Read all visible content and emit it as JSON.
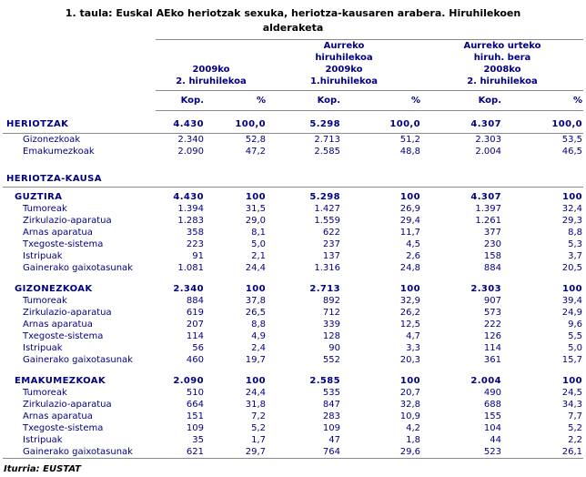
{
  "title": "1. taula: Euskal AEko heriotzak sexuka, heriotza-kausaren arabera. Hiruhilekoen\nalderaketa",
  "colors": {
    "text_navy": "#000080",
    "rule_gray": "#8a8a8a",
    "title_black": "#000000",
    "background": "#ffffff"
  },
  "table": {
    "column_groups": [
      {
        "label": "2009ko\n2. hiruhilekoa"
      },
      {
        "label": "Aurreko\nhiruhilekoa\n2009ko\n1.hiruhilekoa"
      },
      {
        "label": "Aurreko urteko\nhiruh. bera\n2008ko\n2. hiruhilekoa"
      }
    ],
    "subheaders": [
      "Kop.",
      "%",
      "Kop.",
      "%",
      "Kop.",
      "%"
    ],
    "rows": [
      {
        "style": "total",
        "label": "HERIOTZAK",
        "values": [
          "4.430",
          "100,0",
          "5.298",
          "100,0",
          "4.307",
          "100,0"
        ]
      },
      {
        "style": "data",
        "label": "Gizonezkoak",
        "values": [
          "2.340",
          "52,8",
          "2.713",
          "51,2",
          "2.303",
          "53,5"
        ]
      },
      {
        "style": "data",
        "label": "Emakumezkoak",
        "values": [
          "2.090",
          "47,2",
          "2.585",
          "48,8",
          "2.004",
          "46,5"
        ]
      },
      {
        "style": "spacer-lg"
      },
      {
        "style": "section",
        "label": "HERIOTZA-KAUSA",
        "values": [
          "",
          "",
          "",
          "",
          "",
          ""
        ]
      },
      {
        "style": "group",
        "label": "GUZTIRA",
        "values": [
          "4.430",
          "100",
          "5.298",
          "100",
          "4.307",
          "100"
        ]
      },
      {
        "style": "data",
        "label": "Tumoreak",
        "values": [
          "1.394",
          "31,5",
          "1.427",
          "26,9",
          "1.397",
          "32,4"
        ]
      },
      {
        "style": "data",
        "label": "Zirkulazio-aparatua",
        "values": [
          "1.283",
          "29,0",
          "1.559",
          "29,4",
          "1.261",
          "29,3"
        ]
      },
      {
        "style": "data",
        "label": "Arnas aparatua",
        "values": [
          "358",
          "8,1",
          "622",
          "11,7",
          "377",
          "8,8"
        ]
      },
      {
        "style": "data",
        "label": "Txegoste-sistema",
        "values": [
          "223",
          "5,0",
          "237",
          "4,5",
          "230",
          "5,3"
        ]
      },
      {
        "style": "data",
        "label": "Istripuak",
        "values": [
          "91",
          "2,1",
          "137",
          "2,6",
          "158",
          "3,7"
        ]
      },
      {
        "style": "data",
        "label": "Gainerako gaixotasunak",
        "values": [
          "1.081",
          "24,4",
          "1.316",
          "24,8",
          "884",
          "20,5"
        ]
      },
      {
        "style": "spacer-sm"
      },
      {
        "style": "group",
        "label": "GIZONEZKOAK",
        "values": [
          "2.340",
          "100",
          "2.713",
          "100",
          "2.303",
          "100"
        ]
      },
      {
        "style": "data",
        "label": "Tumoreak",
        "values": [
          "884",
          "37,8",
          "892",
          "32,9",
          "907",
          "39,4"
        ]
      },
      {
        "style": "data",
        "label": "Zirkulazio-aparatua",
        "values": [
          "619",
          "26,5",
          "712",
          "26,2",
          "573",
          "24,9"
        ]
      },
      {
        "style": "data",
        "label": "Arnas aparatua",
        "values": [
          "207",
          "8,8",
          "339",
          "12,5",
          "222",
          "9,6"
        ]
      },
      {
        "style": "data",
        "label": "Txegoste-sistema",
        "values": [
          "114",
          "4,9",
          "128",
          "4,7",
          "126",
          "5,5"
        ]
      },
      {
        "style": "data",
        "label": "Istripuak",
        "values": [
          "56",
          "2,4",
          "90",
          "3,3",
          "114",
          "5,0"
        ]
      },
      {
        "style": "data",
        "label": "Gainerako gaixotasunak",
        "values": [
          "460",
          "19,7",
          "552",
          "20,3",
          "361",
          "15,7"
        ]
      },
      {
        "style": "spacer-sm"
      },
      {
        "style": "group",
        "label": "EMAKUMEZKOAK",
        "values": [
          "2.090",
          "100",
          "2.585",
          "100",
          "2.004",
          "100"
        ]
      },
      {
        "style": "data",
        "label": "Tumoreak",
        "values": [
          "510",
          "24,4",
          "535",
          "20,7",
          "490",
          "24,5"
        ]
      },
      {
        "style": "data",
        "label": "Zirkulazio-aparatua",
        "values": [
          "664",
          "31,8",
          "847",
          "32,8",
          "688",
          "34,3"
        ]
      },
      {
        "style": "data",
        "label": "Arnas aparatua",
        "values": [
          "151",
          "7,2",
          "283",
          "10,9",
          "155",
          "7,7"
        ]
      },
      {
        "style": "data",
        "label": "Txegoste-sistema",
        "values": [
          "109",
          "5,2",
          "109",
          "4,2",
          "104",
          "5,2"
        ]
      },
      {
        "style": "data",
        "label": "Istripuak",
        "values": [
          "35",
          "1,7",
          "47",
          "1,8",
          "44",
          "2,2"
        ]
      },
      {
        "style": "data",
        "label": "Gainerako gaixotasunak",
        "values": [
          "621",
          "29,7",
          "764",
          "29,6",
          "523",
          "26,1"
        ],
        "last": true
      }
    ]
  },
  "footer": {
    "source": "Iturria: EUSTAT"
  }
}
